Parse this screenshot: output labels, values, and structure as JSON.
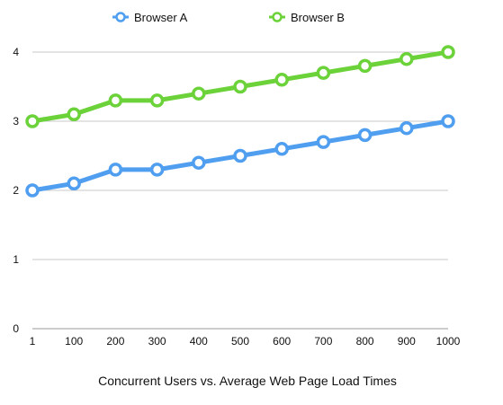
{
  "chart_data": {
    "type": "line",
    "title": "Concurrent Users vs. Average Web Page Load Times",
    "xlabel": "",
    "ylabel": "",
    "categories": [
      "1",
      "100",
      "200",
      "300",
      "400",
      "500",
      "600",
      "700",
      "800",
      "900",
      "1000"
    ],
    "ylim": [
      0,
      4
    ],
    "yticks": [
      "0",
      "1",
      "2",
      "3",
      "4"
    ],
    "grid": true,
    "legend_position": "top-center",
    "series": [
      {
        "name": "Browser A",
        "color": "#4f9ef0",
        "values": [
          2.0,
          2.1,
          2.3,
          2.3,
          2.4,
          2.5,
          2.6,
          2.7,
          2.8,
          2.9,
          3.0
        ]
      },
      {
        "name": "Browser B",
        "color": "#6cd23a",
        "values": [
          3.0,
          3.1,
          3.3,
          3.3,
          3.4,
          3.5,
          3.6,
          3.7,
          3.8,
          3.9,
          4.0
        ]
      }
    ]
  }
}
